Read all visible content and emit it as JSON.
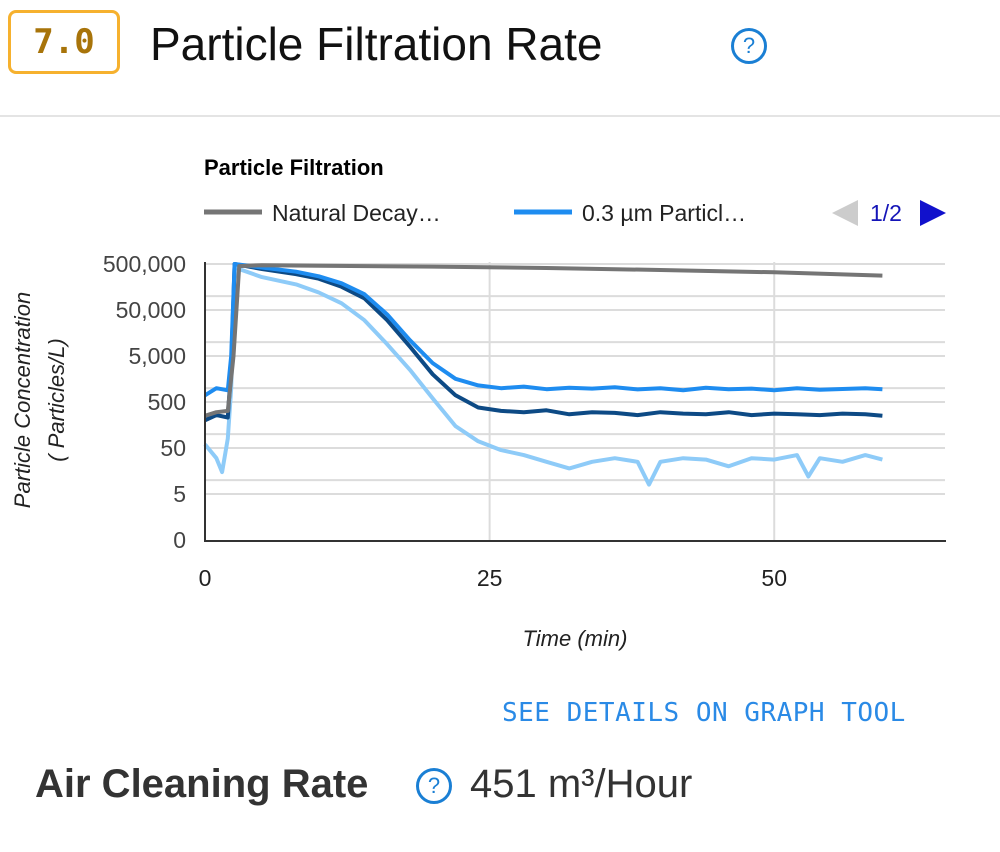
{
  "header": {
    "score": "7.0",
    "title": "Particle Filtration Rate",
    "help_icon": "question-circle-icon"
  },
  "details_link": "SEE DETAILS ON GRAPH TOOL",
  "air_cleaning": {
    "label": "Air Cleaning Rate",
    "help_icon": "question-circle-icon",
    "value": "451 m³/Hour"
  },
  "colors": {
    "accent": "#1a7fd4",
    "badge": "#f6b12e"
  },
  "chart_data": {
    "type": "line",
    "title": "Particle Filtration",
    "xlabel": "Time (min)",
    "ylabel": [
      "Particle Concentration",
      "( Particles/L)"
    ],
    "y_scale": "log",
    "xlim": [
      0,
      65
    ],
    "ylim": [
      0,
      500000
    ],
    "x_ticks": [
      "0",
      "25",
      "50"
    ],
    "y_ticks": [
      "0",
      "5",
      "50",
      "500",
      "5,000",
      "50,000",
      "500,000"
    ],
    "grid": true,
    "legend": {
      "placement": "top",
      "entries": [
        "Natural Decay…",
        "0.3 µm Particl…"
      ],
      "page": "1/2"
    },
    "series": [
      {
        "name": "Natural Decay…",
        "color": "#757575",
        "x": [
          0,
          1,
          2,
          2.5,
          3,
          5,
          10,
          20,
          30,
          40,
          50,
          59.5
        ],
        "y": [
          250,
          300,
          320,
          5000,
          450000,
          470000,
          460000,
          440000,
          410000,
          370000,
          330000,
          280000
        ]
      },
      {
        "name": "0.3 µm Particl…",
        "color": "#1e8cf0",
        "x": [
          0,
          1,
          2,
          2.3,
          2.6,
          5,
          8,
          10,
          12,
          14,
          16,
          18,
          20,
          22,
          24,
          26,
          28,
          30,
          32,
          34,
          36,
          38,
          40,
          42,
          44,
          46,
          48,
          50,
          52,
          54,
          56,
          58,
          59.5
        ],
        "y": [
          700,
          1000,
          900,
          5000,
          500000,
          420000,
          340000,
          270000,
          190000,
          110000,
          40000,
          11000,
          3500,
          1600,
          1150,
          1000,
          1080,
          950,
          1020,
          980,
          1050,
          940,
          1000,
          900,
          1020,
          950,
          980,
          900,
          1000,
          920,
          960,
          1000,
          950
        ]
      },
      {
        "color": "#0d4a85",
        "x": [
          0,
          1,
          2,
          2.3,
          2.6,
          5,
          8,
          10,
          12,
          14,
          16,
          18,
          20,
          22,
          24,
          26,
          28,
          30,
          32,
          34,
          36,
          38,
          40,
          42,
          44,
          46,
          48,
          50,
          52,
          54,
          56,
          58,
          59.5
        ],
        "y": [
          200,
          260,
          230,
          3000,
          500000,
          390000,
          300000,
          240000,
          160000,
          90000,
          30000,
          8000,
          2000,
          700,
          380,
          320,
          300,
          330,
          270,
          300,
          290,
          260,
          300,
          280,
          270,
          300,
          260,
          280,
          270,
          260,
          280,
          270,
          250
        ]
      },
      {
        "color": "#8ecbf8",
        "x": [
          0,
          1,
          1.5,
          2,
          2.3,
          2.6,
          5,
          8,
          10,
          12,
          14,
          16,
          18,
          20,
          22,
          24,
          26,
          28,
          30,
          32,
          34,
          36,
          38,
          39,
          40,
          42,
          44,
          46,
          48,
          50,
          52,
          53,
          54,
          56,
          58,
          59.5
        ],
        "y": [
          60,
          30,
          15,
          80,
          1000,
          420000,
          260000,
          180000,
          120000,
          70000,
          30000,
          9000,
          2500,
          600,
          150,
          70,
          45,
          35,
          25,
          18,
          25,
          30,
          25,
          8,
          25,
          30,
          28,
          20,
          30,
          28,
          35,
          12,
          30,
          25,
          35,
          28
        ]
      }
    ]
  }
}
